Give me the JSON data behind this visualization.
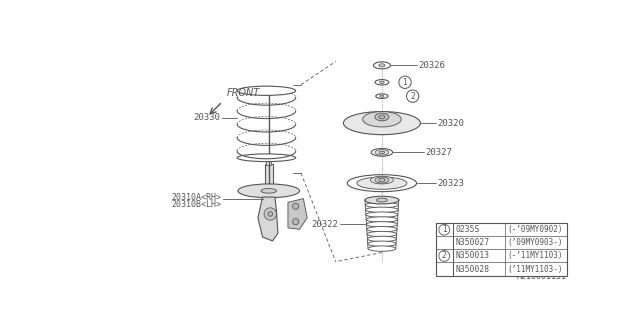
{
  "bg_color": "#ffffff",
  "diagram_id": "A210001151",
  "front_label": "FRONT",
  "label_20330": "20330",
  "label_20326": "20326",
  "label_20320": "20320",
  "label_20327": "20327",
  "label_20323": "20323",
  "label_20322": "20322",
  "label_20310A": "20310A<RH>",
  "label_20310B": "20310B<LH>",
  "line_color": "#555555",
  "table": {
    "rows": [
      {
        "circle": "1",
        "col1": "0235S",
        "col2": "(-’09MY0902)"
      },
      {
        "circle": "",
        "col1": "N350027",
        "col2": "(’09MY0903-)"
      },
      {
        "circle": "2",
        "col1": "N350013",
        "col2": "(-’11MY1103)"
      },
      {
        "circle": "",
        "col1": "N350028",
        "col2": "(’11MY1103-)"
      }
    ]
  }
}
